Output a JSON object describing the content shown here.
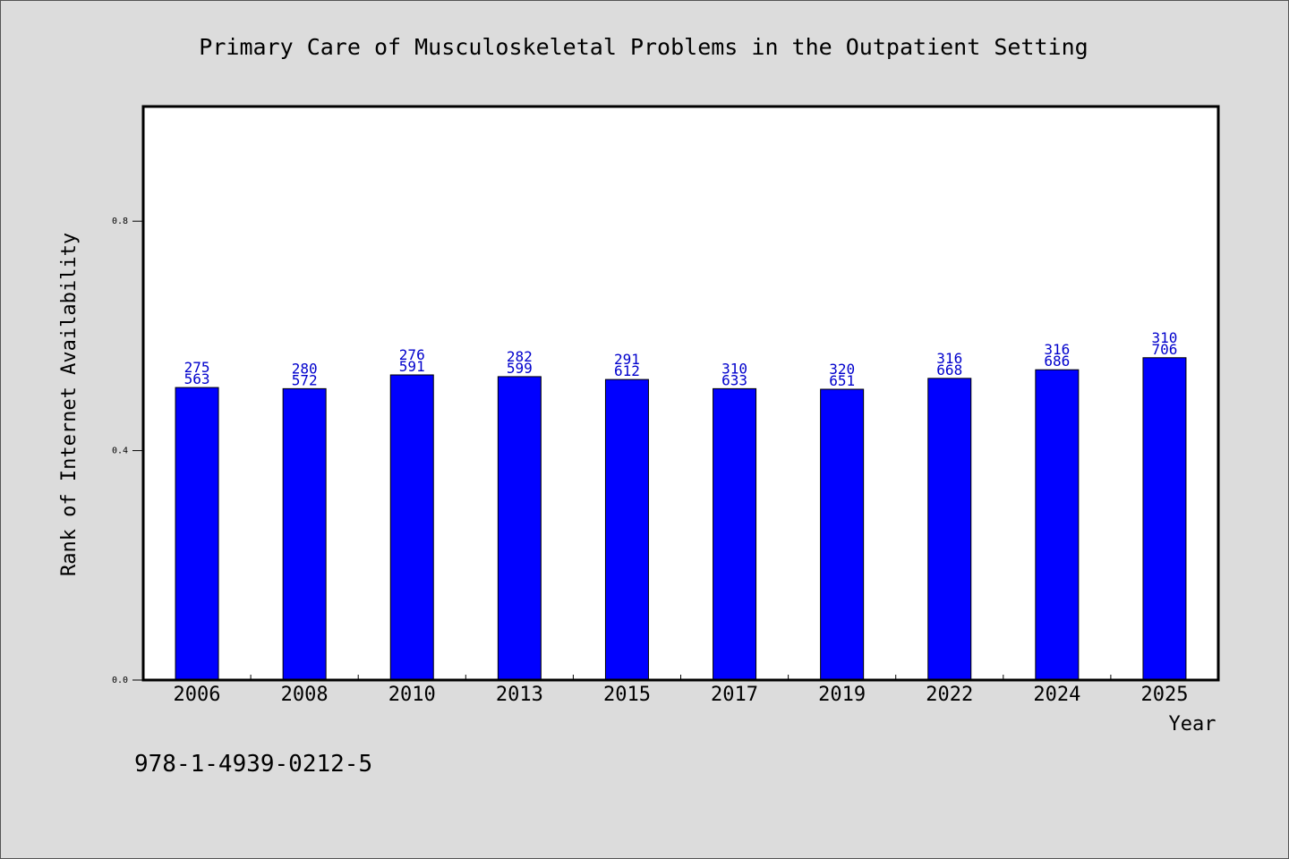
{
  "chart_data": {
    "type": "bar",
    "title": "Primary Care of Musculoskeletal Problems in the Outpatient Setting",
    "xlabel": "Year",
    "ylabel": "Rank of Internet Availability",
    "categories": [
      "2006",
      "2008",
      "2010",
      "2013",
      "2015",
      "2017",
      "2019",
      "2022",
      "2024",
      "2025"
    ],
    "values": [
      0.51,
      0.508,
      0.532,
      0.529,
      0.524,
      0.508,
      0.507,
      0.526,
      0.541,
      0.562
    ],
    "data_labels": [
      [
        "275",
        "563"
      ],
      [
        "280",
        "572"
      ],
      [
        "276",
        "591"
      ],
      [
        "282",
        "599"
      ],
      [
        "291",
        "612"
      ],
      [
        "310",
        "633"
      ],
      [
        "320",
        "651"
      ],
      [
        "316",
        "668"
      ],
      [
        "316",
        "686"
      ],
      [
        "310",
        "706"
      ]
    ],
    "ylim": [
      0,
      1.0
    ],
    "yticks": [
      "0.0",
      "0.4",
      "0.8"
    ],
    "ytick_values": [
      0.0,
      0.4,
      0.8
    ],
    "grid": false,
    "bar_color": "#0000ff",
    "label_color": "#0000cc"
  },
  "footer": {
    "code": "978-1-4939-0212-5"
  }
}
